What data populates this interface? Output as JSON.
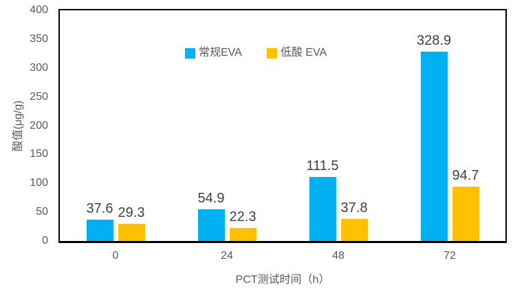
{
  "chart_data": {
    "type": "bar",
    "title": "",
    "categories": [
      "0",
      "24",
      "48",
      "72"
    ],
    "series": [
      {
        "name": "常规EVA",
        "color": "#00B0F0",
        "values": [
          37.6,
          54.9,
          111.5,
          328.9
        ]
      },
      {
        "name": "低酸 EVA",
        "color": "#FFC000",
        "values": [
          29.3,
          22.3,
          37.8,
          94.7
        ]
      }
    ],
    "xlabel": "PCT测试时间（h）",
    "ylabel": "酸值(μg/g)",
    "ylim": [
      0,
      400
    ],
    "ytick_step": 50,
    "grid": false,
    "legend_position": "top-center-inside",
    "data_labels": true,
    "data_label_decimals": 1,
    "colors": {
      "axis_line": "#000000",
      "tick_label": "#595959",
      "data_label": "#404040",
      "background": "#FFFFFF"
    }
  }
}
